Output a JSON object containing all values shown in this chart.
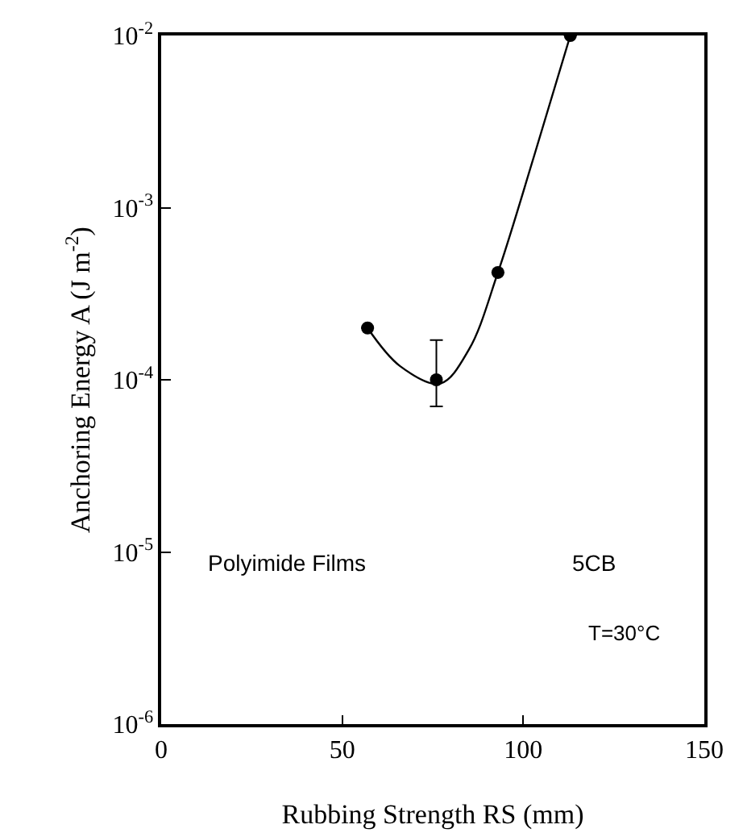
{
  "chart_data": {
    "type": "scatter",
    "xlabel": "Rubbing Strength RS (mm)",
    "ylabel": "Anchoring Energy A (J m$^{-2}$)",
    "xlim": [
      0,
      150
    ],
    "xticks": [
      0,
      50,
      100,
      150
    ],
    "ylim": [
      1e-06,
      0.01
    ],
    "yticks": [
      {
        "value": 1e-06,
        "label": "10$^{-6}$"
      },
      {
        "value": 1e-05,
        "label": "10$^{-5}$"
      },
      {
        "value": 0.0001,
        "label": "10$^{-4}$"
      },
      {
        "value": 0.001,
        "label": "10$^{-3}$"
      },
      {
        "value": 0.01,
        "label": "10$^{-2}$"
      }
    ],
    "log": "y",
    "grid": false,
    "marker": "circle",
    "series": [
      {
        "type": "line",
        "marker": "none",
        "color": "#000000",
        "x": [
          57,
          66,
          77,
          85,
          93,
          103,
          113
        ],
        "values": [
          0.0002,
          0.00012,
          9.5e-05,
          0.00015,
          0.00042,
          0.002,
          0.01
        ]
      },
      {
        "color": "#000000",
        "x": [
          57,
          76,
          93,
          113
        ],
        "values": [
          0.0002,
          0.0001,
          0.00042,
          0.01
        ],
        "errors": [
          null,
          [
            7e-05,
            0.00017
          ],
          null,
          null
        ]
      }
    ],
    "annotations": [
      "Polyimide Films",
      "5CB",
      "T=30°C"
    ]
  }
}
